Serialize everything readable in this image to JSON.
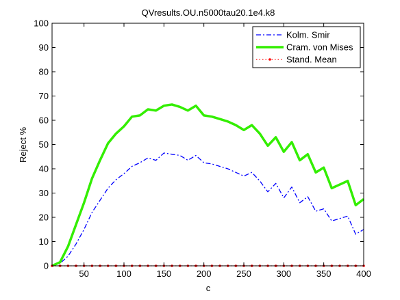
{
  "chart_data": {
    "type": "line",
    "title": "QVresults.OU.n5000tau20.1e4.k8",
    "xlabel": "c",
    "ylabel": "Reject %",
    "xlim": [
      10,
      400
    ],
    "ylim": [
      0,
      100
    ],
    "xticks": [
      50,
      100,
      150,
      200,
      250,
      300,
      350,
      400
    ],
    "yticks": [
      0,
      10,
      20,
      30,
      40,
      50,
      60,
      70,
      80,
      90,
      100
    ],
    "grid": false,
    "legend_position": "top-right",
    "x": [
      10,
      20,
      30,
      40,
      50,
      60,
      70,
      80,
      90,
      100,
      110,
      120,
      130,
      140,
      150,
      160,
      170,
      180,
      190,
      200,
      210,
      220,
      230,
      240,
      250,
      260,
      270,
      280,
      290,
      300,
      310,
      320,
      330,
      340,
      350,
      360,
      370,
      380,
      390,
      400
    ],
    "series": [
      {
        "name": "Kolm. Smir",
        "color": "#0000ff",
        "style": "dash-dot",
        "values": [
          0,
          1,
          4,
          9,
          15,
          22,
          27,
          32,
          35.5,
          38,
          41,
          42.5,
          44.5,
          43.5,
          46.5,
          46,
          45.5,
          43.5,
          45.5,
          42.5,
          42,
          41,
          40,
          38.5,
          37,
          38.5,
          35,
          30.5,
          34,
          28,
          32.5,
          26,
          28.5,
          22.5,
          23.5,
          18.5,
          19.5,
          20.5,
          13,
          15
        ]
      },
      {
        "name": "Cram. von Mises",
        "color": "#33ee00",
        "style": "solid",
        "values": [
          0,
          1.5,
          8,
          17,
          26,
          36,
          43.5,
          50.5,
          54.5,
          57.5,
          61.5,
          62,
          64.5,
          64,
          66,
          66.5,
          65.5,
          64,
          66,
          62,
          61.5,
          60.5,
          59.5,
          58,
          56,
          58,
          54.5,
          49.5,
          53,
          47,
          51,
          43.5,
          46,
          38.5,
          40.5,
          32,
          33.5,
          35,
          25,
          27.5
        ]
      },
      {
        "name": "Stand. Mean",
        "color": "#ff0000",
        "style": "dotted",
        "values": [
          0,
          0,
          0,
          0,
          0,
          0,
          0,
          0,
          0,
          0,
          0,
          0,
          0,
          0,
          0,
          0,
          0,
          0,
          0,
          0,
          0,
          0,
          0,
          0,
          0,
          0,
          0,
          0,
          0,
          0,
          0,
          0,
          0,
          0,
          0,
          0,
          0,
          0,
          0,
          0
        ]
      }
    ]
  }
}
